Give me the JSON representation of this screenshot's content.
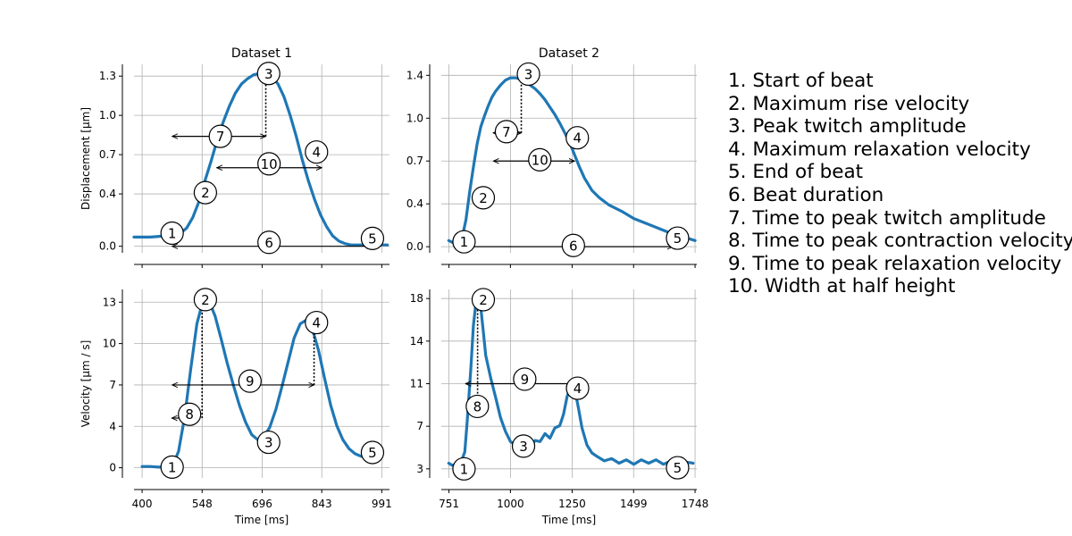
{
  "figure": {
    "x_label": "Time [ms]",
    "legend": [
      "1. Start of beat",
      "2. Maximum rise velocity",
      "3. Peak twitch amplitude",
      "4. Maximum relaxation velocity",
      "5. End of beat",
      "6. Beat duration",
      "7. Time to peak twitch amplitude",
      "8. Time to peak contraction velocity",
      "9. Time to peak relaxation velocity",
      "10. Width at half height"
    ]
  },
  "colors": {
    "line": "#1f77b4",
    "grid": "#b0b0b0",
    "text": "#000000"
  },
  "chart_data": [
    {
      "type": "line",
      "title": "Dataset 1",
      "ylabel": "Displacement [µm]",
      "xlim": [
        380,
        1010
      ],
      "ylim": [
        -0.05,
        1.39
      ],
      "xticks": [
        "400",
        "548",
        "696",
        "843",
        "991"
      ],
      "xtick_values": [
        400,
        548,
        696,
        843,
        991
      ],
      "yticks": [
        "0.0",
        "0.4",
        "0.7",
        "1.0",
        "1.3"
      ],
      "ytick_values": [
        0.0,
        0.4,
        0.7,
        1.0,
        1.3
      ],
      "series": [
        {
          "x": [
            380,
            420,
            460,
            480,
            495,
            510,
            525,
            540,
            555,
            570,
            585,
            600,
            615,
            630,
            645,
            660,
            675,
            690,
            705,
            720,
            735,
            750,
            765,
            780,
            795,
            810,
            825,
            840,
            855,
            870,
            885,
            900,
            915,
            930,
            945,
            960,
            975,
            990,
            1005
          ],
          "y": [
            0.07,
            0.07,
            0.08,
            0.08,
            0.1,
            0.14,
            0.22,
            0.34,
            0.5,
            0.65,
            0.81,
            0.95,
            1.07,
            1.17,
            1.24,
            1.28,
            1.31,
            1.32,
            1.32,
            1.3,
            1.24,
            1.14,
            1.0,
            0.84,
            0.66,
            0.5,
            0.36,
            0.24,
            0.15,
            0.08,
            0.04,
            0.02,
            0.01,
            0.01,
            0.01,
            0.01,
            0.01,
            0.01,
            0.01
          ]
        }
      ],
      "markers": [
        {
          "label": "1",
          "x": 474,
          "y": 0.1
        },
        {
          "label": "2",
          "x": 556,
          "y": 0.41
        },
        {
          "label": "3",
          "x": 712,
          "y": 1.32
        },
        {
          "label": "4",
          "x": 830,
          "y": 0.72
        },
        {
          "label": "5",
          "x": 968,
          "y": 0.06
        },
        {
          "label": "6",
          "x": 713,
          "y": 0.03
        },
        {
          "label": "7",
          "x": 593,
          "y": 0.84
        },
        {
          "label": "10",
          "x": 713,
          "y": 0.63
        }
      ],
      "arrows": [
        {
          "label": "6",
          "x1": 474,
          "x2": 968,
          "y": 0.0,
          "heads": "both"
        },
        {
          "label": "7",
          "x1": 474,
          "x2": 705,
          "y": 0.84,
          "heads": "both"
        },
        {
          "label": "10",
          "x1": 584,
          "x2": 843,
          "y": 0.6,
          "heads": "both"
        }
      ],
      "vlines": [
        {
          "x": 705,
          "y1": 0.84,
          "y2": 1.3
        }
      ]
    },
    {
      "type": "line",
      "title": "Dataset 2",
      "ylabel": "",
      "xlim": [
        720,
        1755
      ],
      "ylim": [
        -0.05,
        1.49
      ],
      "xticks": [
        "751",
        "1000",
        "1250",
        "1499",
        "1748"
      ],
      "xtick_values": [
        751,
        1000,
        1250,
        1499,
        1748
      ],
      "yticks": [
        "0.0",
        "0.4",
        "0.7",
        "1.0",
        "1.4"
      ],
      "ytick_values": [
        0.0,
        0.35,
        0.7,
        1.05,
        1.4
      ],
      "series": [
        {
          "x": [
            750,
            770,
            790,
            805,
            820,
            835,
            850,
            865,
            880,
            895,
            910,
            925,
            940,
            960,
            980,
            1000,
            1020,
            1040,
            1060,
            1080,
            1100,
            1120,
            1140,
            1160,
            1180,
            1200,
            1220,
            1240,
            1260,
            1280,
            1300,
            1330,
            1360,
            1400,
            1450,
            1500,
            1550,
            1600,
            1650,
            1700,
            1748
          ],
          "y": [
            0.05,
            0.03,
            0.03,
            0.08,
            0.22,
            0.45,
            0.65,
            0.84,
            0.98,
            1.07,
            1.15,
            1.22,
            1.27,
            1.32,
            1.36,
            1.38,
            1.38,
            1.37,
            1.35,
            1.32,
            1.29,
            1.25,
            1.2,
            1.14,
            1.08,
            1.01,
            0.93,
            0.85,
            0.75,
            0.65,
            0.56,
            0.46,
            0.4,
            0.34,
            0.29,
            0.23,
            0.19,
            0.15,
            0.11,
            0.08,
            0.05
          ]
        }
      ],
      "markers": [
        {
          "label": "1",
          "x": 812,
          "y": 0.04
        },
        {
          "label": "2",
          "x": 890,
          "y": 0.4
        },
        {
          "label": "3",
          "x": 1073,
          "y": 1.41
        },
        {
          "label": "4",
          "x": 1271,
          "y": 0.89
        },
        {
          "label": "5",
          "x": 1677,
          "y": 0.07
        },
        {
          "label": "6",
          "x": 1255,
          "y": 0.01
        },
        {
          "label": "7",
          "x": 984,
          "y": 0.94
        },
        {
          "label": "10",
          "x": 1119,
          "y": 0.71
        }
      ],
      "arrows": [
        {
          "label": "6",
          "x1": 818,
          "x2": 1658,
          "y": 0.0,
          "heads": "both"
        },
        {
          "label": "7",
          "x1": 930,
          "x2": 1044,
          "y": 0.93,
          "heads": "both"
        },
        {
          "label": "10",
          "x1": 931,
          "x2": 1260,
          "y": 0.7,
          "heads": "both"
        }
      ],
      "vlines": [
        {
          "x": 1044,
          "y1": 0.93,
          "y2": 1.38
        }
      ]
    },
    {
      "type": "line",
      "title": "",
      "ylabel": "Velocity [µm / s]",
      "xlim": [
        380,
        1010
      ],
      "ylim": [
        -0.8,
        14.0
      ],
      "xticks": [
        "400",
        "548",
        "696",
        "843",
        "991"
      ],
      "xtick_values": [
        400,
        548,
        696,
        843,
        991
      ],
      "yticks": [
        "0",
        "4",
        "7",
        "10",
        "13"
      ],
      "ytick_values": [
        0,
        3.25,
        6.5,
        9.75,
        13
      ],
      "series": [
        {
          "x": [
            400,
            420,
            440,
            460,
            475,
            490,
            505,
            520,
            535,
            550,
            565,
            580,
            595,
            610,
            625,
            640,
            655,
            670,
            685,
            700,
            715,
            730,
            745,
            760,
            775,
            790,
            805,
            820,
            835,
            850,
            865,
            880,
            895,
            910,
            925,
            940,
            960,
            980
          ],
          "y": [
            0.1,
            0.1,
            0.05,
            0.05,
            0.1,
            1.3,
            4.0,
            7.8,
            11.3,
            13.1,
            13.1,
            11.9,
            10.1,
            8.2,
            6.5,
            4.9,
            3.6,
            2.6,
            2.2,
            2.4,
            3.2,
            4.6,
            6.4,
            8.3,
            10.2,
            11.3,
            11.6,
            10.9,
            9.2,
            7.0,
            4.9,
            3.3,
            2.2,
            1.5,
            1.1,
            0.9,
            0.8,
            0.8
          ]
        }
      ],
      "markers": [
        {
          "label": "1",
          "x": 474,
          "y": 0.05
        },
        {
          "label": "2",
          "x": 556,
          "y": 13.2
        },
        {
          "label": "3",
          "x": 712,
          "y": 2.0
        },
        {
          "label": "4",
          "x": 830,
          "y": 11.4
        },
        {
          "label": "5",
          "x": 968,
          "y": 1.2
        },
        {
          "label": "8",
          "x": 517,
          "y": 4.2
        },
        {
          "label": "9",
          "x": 666,
          "y": 6.8
        }
      ],
      "arrows": [
        {
          "label": "8",
          "x1": 473,
          "x2": 498,
          "y": 3.9,
          "heads": "left"
        },
        {
          "label": "9",
          "x1": 474,
          "x2": 824,
          "y": 6.5,
          "heads": "both"
        }
      ],
      "vlines": [
        {
          "x": 548,
          "y1": 3.9,
          "y2": 12.9
        },
        {
          "x": 824,
          "y1": 6.5,
          "y2": 11.4
        }
      ]
    },
    {
      "type": "line",
      "title": "",
      "ylabel": "",
      "xlim": [
        720,
        1755
      ],
      "ylim": [
        2.2,
        18.8
      ],
      "xticks": [
        "751",
        "1000",
        "1250",
        "1499",
        "1748"
      ],
      "xtick_values": [
        751,
        1000,
        1250,
        1499,
        1748
      ],
      "yticks": [
        "3",
        "7",
        "11",
        "14",
        "18"
      ],
      "ytick_values": [
        3,
        6.75,
        10.5,
        14.25,
        18
      ],
      "series": [
        {
          "x": [
            750,
            765,
            780,
            800,
            815,
            825,
            840,
            850,
            860,
            870,
            880,
            890,
            900,
            920,
            940,
            960,
            980,
            1000,
            1020,
            1040,
            1060,
            1080,
            1100,
            1120,
            1140,
            1160,
            1180,
            1200,
            1215,
            1230,
            1245,
            1260,
            1275,
            1290,
            1310,
            1330,
            1350,
            1380,
            1410,
            1440,
            1470,
            1500,
            1530,
            1560,
            1590,
            1620,
            1650,
            1680,
            1710,
            1740
          ],
          "y": [
            3.5,
            3.3,
            3.4,
            3.6,
            4.5,
            7.2,
            12.0,
            15.6,
            17.6,
            18.2,
            17.2,
            15.1,
            13.0,
            11.0,
            9.3,
            7.5,
            6.3,
            5.4,
            5.1,
            4.7,
            5.1,
            4.9,
            5.5,
            5.4,
            6.1,
            5.7,
            6.6,
            6.8,
            7.8,
            9.4,
            10.3,
            10.1,
            8.4,
            6.6,
            5.1,
            4.4,
            4.1,
            3.7,
            3.9,
            3.5,
            3.8,
            3.4,
            3.8,
            3.5,
            3.8,
            3.4,
            3.7,
            3.5,
            3.6,
            3.5
          ]
        }
      ],
      "markers": [
        {
          "label": "1",
          "x": 812,
          "y": 3.0
        },
        {
          "label": "2",
          "x": 890,
          "y": 17.9
        },
        {
          "label": "3",
          "x": 1053,
          "y": 5.0
        },
        {
          "label": "4",
          "x": 1272,
          "y": 10.1
        },
        {
          "label": "5",
          "x": 1677,
          "y": 3.1
        },
        {
          "label": "8",
          "x": 866,
          "y": 8.5
        },
        {
          "label": "9",
          "x": 1058,
          "y": 10.9
        }
      ],
      "arrows": [
        {
          "label": "9",
          "x1": 818,
          "x2": 1259,
          "y": 10.5,
          "heads": "both"
        }
      ],
      "vlines": [
        {
          "x": 867,
          "y1": 9.0,
          "y2": 17.8
        }
      ]
    }
  ]
}
